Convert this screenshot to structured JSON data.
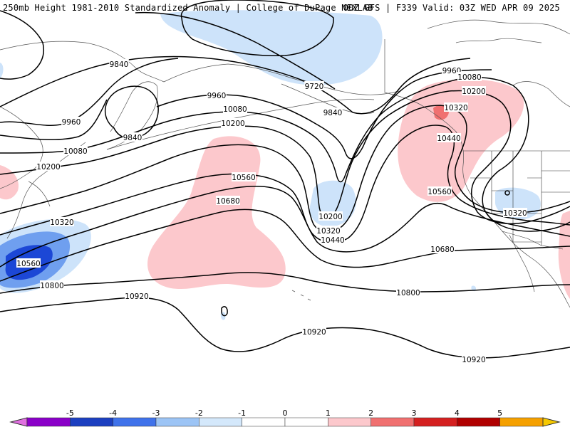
{
  "header": {
    "title_left": "250mb Height 1981-2010 Standardized Anomaly | College of DuPage NEXLAB",
    "title_right": "00Z GFS | F339 Valid: 03Z WED APR 09 2025"
  },
  "contour_labels": [
    {
      "id": "9840-a",
      "text": "9840"
    },
    {
      "id": "9840-b",
      "text": "9840"
    },
    {
      "id": "9840-c",
      "text": "9840"
    },
    {
      "id": "9720",
      "text": "9720"
    },
    {
      "id": "9960-a",
      "text": "9960"
    },
    {
      "id": "9960-b",
      "text": "9960"
    },
    {
      "id": "9960-c",
      "text": "9960"
    },
    {
      "id": "10080-a",
      "text": "10080"
    },
    {
      "id": "10080-b",
      "text": "10080"
    },
    {
      "id": "10080-c",
      "text": "10080"
    },
    {
      "id": "10200-a",
      "text": "10200"
    },
    {
      "id": "10200-b",
      "text": "10200"
    },
    {
      "id": "10200-c",
      "text": "10200"
    },
    {
      "id": "10200-d",
      "text": "10200"
    },
    {
      "id": "10320-a",
      "text": "10320"
    },
    {
      "id": "10320-b",
      "text": "10320"
    },
    {
      "id": "10320-c",
      "text": "10320"
    },
    {
      "id": "10320-d",
      "text": "10320"
    },
    {
      "id": "10440-a",
      "text": "10440"
    },
    {
      "id": "10440-b",
      "text": "10440"
    },
    {
      "id": "10560-a",
      "text": "10560"
    },
    {
      "id": "10560-b",
      "text": "10560"
    },
    {
      "id": "10560-c",
      "text": "10560"
    },
    {
      "id": "10680-a",
      "text": "10680"
    },
    {
      "id": "10680-b",
      "text": "10680"
    },
    {
      "id": "10800-a",
      "text": "10800"
    },
    {
      "id": "10800-b",
      "text": "10800"
    },
    {
      "id": "10920-a",
      "text": "10920"
    },
    {
      "id": "10920-b",
      "text": "10920"
    },
    {
      "id": "10920-c",
      "text": "10920"
    }
  ],
  "colorbar": {
    "ticks": [
      "-5",
      "-4",
      "-3",
      "-2",
      "-1",
      "0",
      "1",
      "2",
      "3",
      "4",
      "5"
    ],
    "segments": [
      {
        "color": "#8a00c8"
      },
      {
        "color": "#1c3fc0"
      },
      {
        "color": "#3f72ea"
      },
      {
        "color": "#9cc4f5"
      },
      {
        "color": "#d4e8fb"
      },
      {
        "color": "#ffffff"
      },
      {
        "color": "#ffffff"
      },
      {
        "color": "#fcc8cc"
      },
      {
        "color": "#f07070"
      },
      {
        "color": "#d42020"
      },
      {
        "color": "#b00000"
      },
      {
        "color": "#f5a000"
      }
    ],
    "low_end_color": "#e070e0",
    "high_end_color": "#f5c800"
  },
  "anomaly_colors": {
    "light_blue": "#cde3fa",
    "mid_blue": "#6f9fef",
    "dark_blue": "#1c47d6",
    "light_red": "#fcc8cc",
    "mid_red": "#f07070"
  }
}
